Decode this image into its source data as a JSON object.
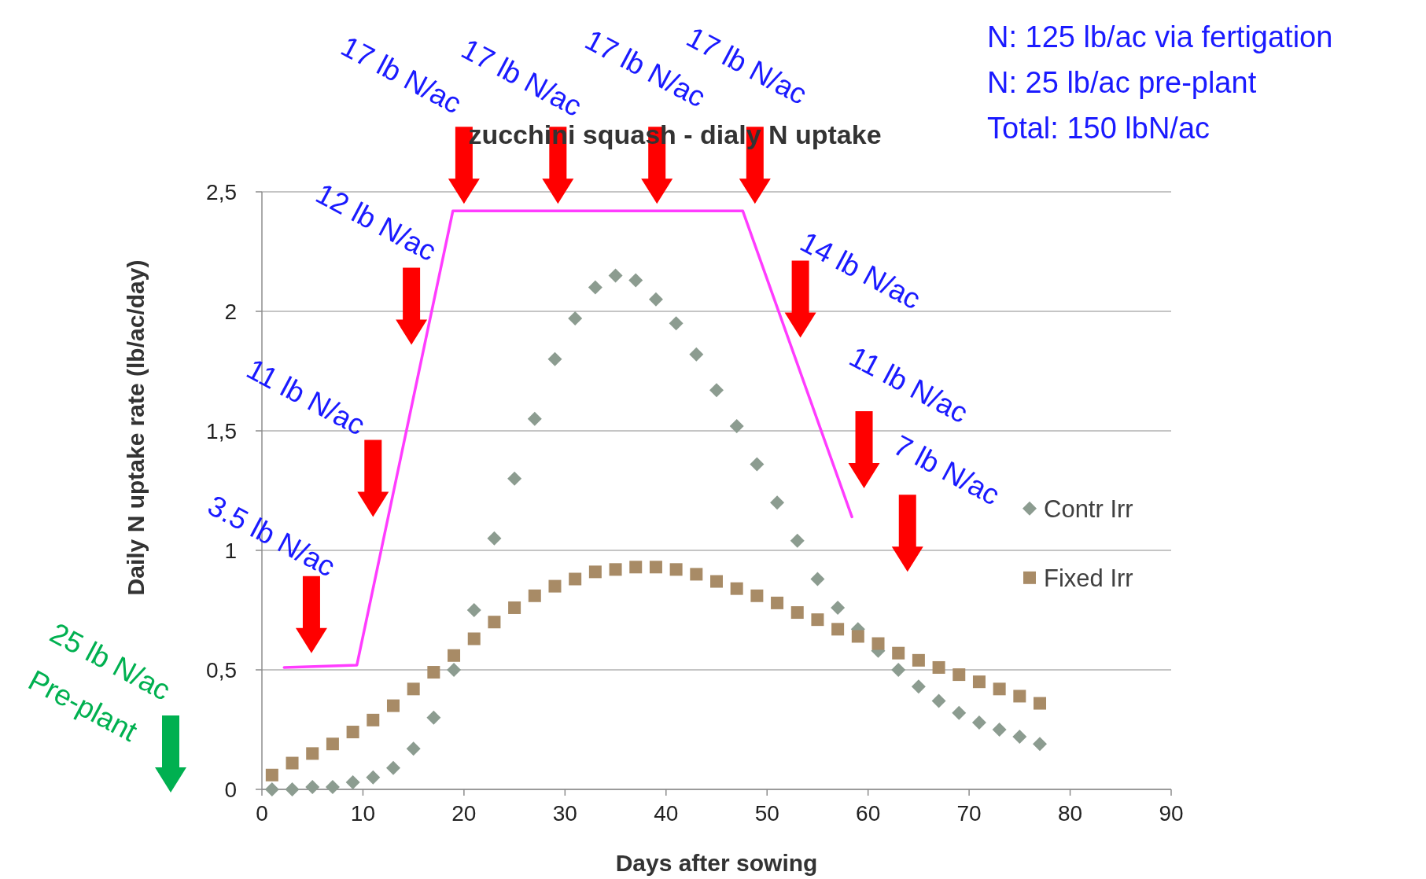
{
  "chart_data": {
    "type": "scatter",
    "title": "zucchini squash - dialy N uptake",
    "xlabel": "Days after sowing",
    "ylabel": "Daily N uptake rate (lb/ac/day)",
    "xlim": [
      0,
      90
    ],
    "xticks": [
      0,
      10,
      20,
      30,
      40,
      50,
      60,
      70,
      80,
      90
    ],
    "ylim": [
      0,
      2.5
    ],
    "yticks": [
      0,
      {
        "value": 0.5,
        "label": "0,5"
      },
      1,
      {
        "value": 1.5,
        "label": "1,5"
      },
      2,
      {
        "value": 2.5,
        "label": "2,5"
      }
    ],
    "grid": "y",
    "legend": "right",
    "series": [
      {
        "name": "Contr Irr",
        "marker": "diamond",
        "color": "#8c9c90",
        "x": [
          1,
          3,
          5,
          7,
          9,
          11,
          13,
          15,
          17,
          19,
          21,
          23,
          25,
          27,
          29,
          31,
          33,
          35,
          37,
          39,
          41,
          43,
          45,
          47,
          49,
          51,
          53,
          55,
          57,
          59,
          61,
          63,
          65,
          67,
          69,
          71,
          73,
          75,
          77
        ],
        "values": [
          0.0,
          0.0,
          0.01,
          0.01,
          0.03,
          0.05,
          0.09,
          0.17,
          0.3,
          0.5,
          0.75,
          1.05,
          1.3,
          1.55,
          1.8,
          1.97,
          2.1,
          2.15,
          2.13,
          2.05,
          1.95,
          1.82,
          1.67,
          1.52,
          1.36,
          1.2,
          1.04,
          0.88,
          0.76,
          0.67,
          0.58,
          0.5,
          0.43,
          0.37,
          0.32,
          0.28,
          0.25,
          0.22,
          0.19
        ]
      },
      {
        "name": "Fixed Irr",
        "marker": "square",
        "color": "#a88b66",
        "x": [
          1,
          3,
          5,
          7,
          9,
          11,
          13,
          15,
          17,
          19,
          21,
          23,
          25,
          27,
          29,
          31,
          33,
          35,
          37,
          39,
          41,
          43,
          45,
          47,
          49,
          51,
          53,
          55,
          57,
          59,
          61,
          63,
          65,
          67,
          69,
          71,
          73,
          75,
          77
        ],
        "values": [
          0.06,
          0.11,
          0.15,
          0.19,
          0.24,
          0.29,
          0.35,
          0.42,
          0.49,
          0.56,
          0.63,
          0.7,
          0.76,
          0.81,
          0.85,
          0.88,
          0.91,
          0.92,
          0.93,
          0.93,
          0.92,
          0.9,
          0.87,
          0.84,
          0.81,
          0.78,
          0.74,
          0.71,
          0.67,
          0.64,
          0.61,
          0.57,
          0.54,
          0.51,
          0.48,
          0.45,
          0.42,
          0.39,
          0.36
        ]
      },
      {
        "type": "line",
        "marker": "none",
        "color": "#ff3cff",
        "x": [
          2.2,
          9.4,
          18.9,
          47.6,
          58.4
        ],
        "values": [
          0.51,
          0.52,
          2.42,
          2.42,
          1.14
        ]
      }
    ],
    "annotations": [
      "3.5 lb N/ac",
      "11 lb N/ac",
      "12 lb N/ac",
      "17 lb N/ac",
      "17 lb N/ac",
      "17 lb N/ac",
      "17 lb N/ac",
      "14 lb N/ac",
      "11 lb N/ac",
      "7 lb N/ac",
      "N: 125 lb/ac via fertigation",
      "N: 25 lb/ac pre-plant",
      "Total: 150 lbN/ac",
      "25 lb N/ac",
      "Pre-plant"
    ]
  }
}
